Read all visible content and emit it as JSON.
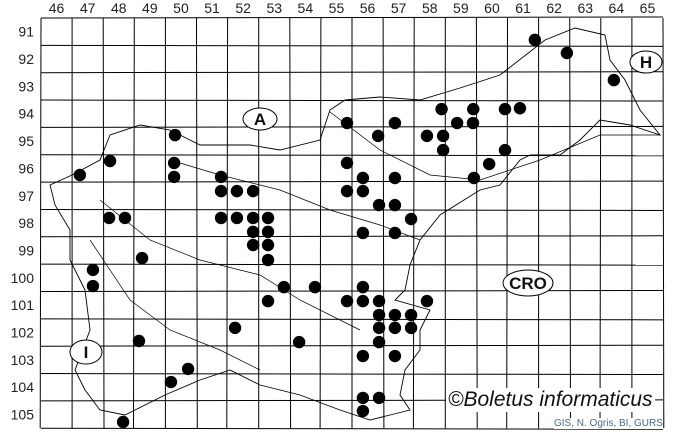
{
  "map": {
    "column_labels": [
      "46",
      "47",
      "48",
      "49",
      "50",
      "51",
      "52",
      "53",
      "54",
      "55",
      "56",
      "57",
      "58",
      "59",
      "60",
      "61",
      "62",
      "63",
      "64",
      "65"
    ],
    "row_labels": [
      "91",
      "92",
      "93",
      "94",
      "95",
      "96",
      "97",
      "98",
      "99",
      "100",
      "101",
      "102",
      "103",
      "104",
      "105"
    ],
    "country_labels": {
      "austria": "A",
      "hungary": "H",
      "croatia": "CRO",
      "italy": "I"
    },
    "records_grid_units": [
      [
        61.88,
        91.8
      ],
      [
        62.91,
        92.28
      ],
      [
        64.42,
        93.27
      ],
      [
        58.88,
        94.33
      ],
      [
        59.9,
        94.33
      ],
      [
        60.92,
        94.33
      ],
      [
        61.4,
        94.3
      ],
      [
        55.84,
        94.84
      ],
      [
        57.38,
        94.84
      ],
      [
        59.38,
        94.84
      ],
      [
        59.89,
        94.84
      ],
      [
        50.31,
        95.28
      ],
      [
        56.84,
        95.31
      ],
      [
        58.41,
        95.31
      ],
      [
        58.93,
        95.31
      ],
      [
        58.93,
        95.83
      ],
      [
        60.92,
        95.83
      ],
      [
        48.22,
        96.23
      ],
      [
        47.25,
        96.74
      ],
      [
        50.28,
        96.3
      ],
      [
        50.28,
        96.81
      ],
      [
        55.84,
        96.3
      ],
      [
        60.41,
        96.34
      ],
      [
        51.79,
        96.81
      ],
      [
        56.35,
        96.85
      ],
      [
        57.38,
        96.85
      ],
      [
        59.92,
        96.85
      ],
      [
        51.79,
        97.33
      ],
      [
        52.3,
        97.33
      ],
      [
        52.82,
        97.33
      ],
      [
        55.84,
        97.33
      ],
      [
        56.35,
        97.33
      ],
      [
        56.87,
        97.84
      ],
      [
        57.38,
        97.84
      ],
      [
        48.19,
        98.31
      ],
      [
        48.7,
        98.31
      ],
      [
        51.79,
        98.31
      ],
      [
        52.3,
        98.31
      ],
      [
        52.82,
        98.31
      ],
      [
        53.3,
        98.31
      ],
      [
        57.9,
        98.35
      ],
      [
        52.82,
        98.82
      ],
      [
        53.3,
        98.82
      ],
      [
        56.35,
        98.86
      ],
      [
        57.38,
        98.86
      ],
      [
        52.82,
        99.3
      ],
      [
        53.3,
        99.3
      ],
      [
        53.3,
        99.85
      ],
      [
        49.25,
        99.78
      ],
      [
        47.67,
        100.21
      ],
      [
        47.67,
        100.8
      ],
      [
        53.81,
        100.84
      ],
      [
        54.81,
        100.84
      ],
      [
        56.35,
        100.84
      ],
      [
        53.3,
        101.35
      ],
      [
        55.84,
        101.35
      ],
      [
        56.35,
        101.35
      ],
      [
        56.87,
        101.35
      ],
      [
        58.41,
        101.35
      ],
      [
        56.87,
        101.86
      ],
      [
        57.38,
        101.86
      ],
      [
        57.9,
        101.86
      ],
      [
        52.24,
        102.33
      ],
      [
        56.87,
        102.33
      ],
      [
        57.38,
        102.33
      ],
      [
        57.9,
        102.33
      ],
      [
        49.15,
        102.81
      ],
      [
        54.3,
        102.85
      ],
      [
        56.87,
        102.85
      ],
      [
        56.35,
        103.36
      ],
      [
        57.38,
        103.36
      ],
      [
        50.73,
        103.83
      ],
      [
        50.18,
        104.31
      ],
      [
        56.35,
        104.89
      ],
      [
        56.87,
        104.89
      ],
      [
        56.35,
        105.37
      ],
      [
        48.64,
        105.77
      ]
    ],
    "dot_color": "#000000",
    "copyright": "©Boletus informaticus",
    "credit": "GIS, N. Ogris, BI, GURS"
  }
}
